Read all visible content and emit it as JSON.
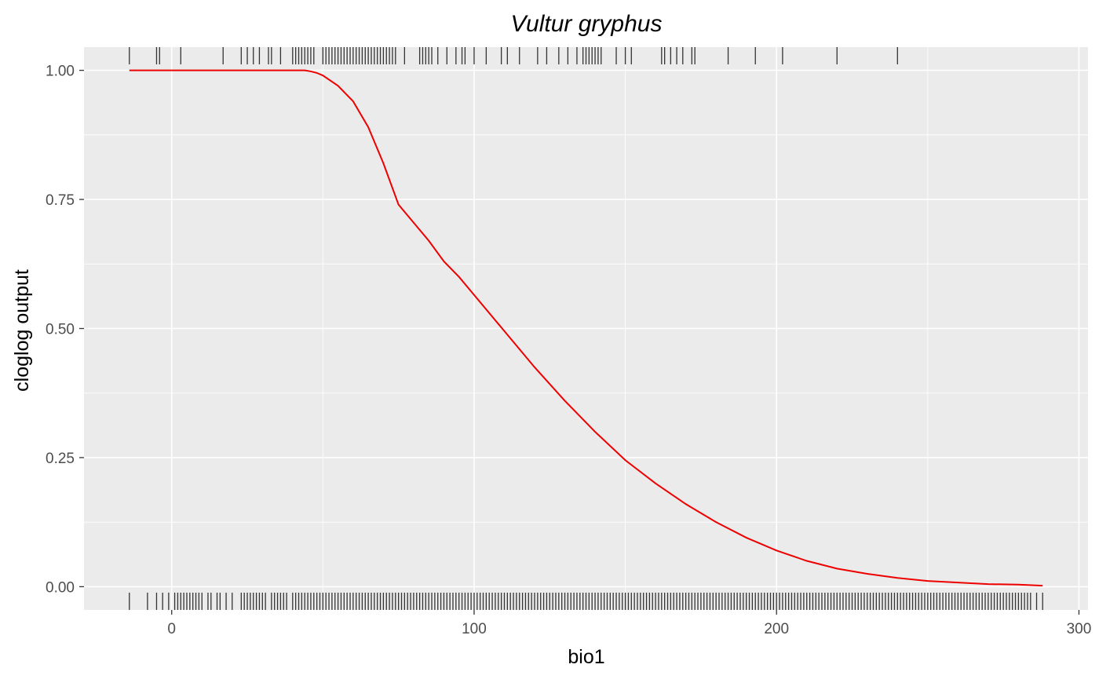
{
  "chart_data": {
    "type": "line",
    "title": "Vultur gryphus",
    "xlabel": "bio1",
    "ylabel": "cloglog output",
    "xlim": [
      -29,
      303
    ],
    "ylim": [
      -0.045,
      1.045
    ],
    "x_ticks": [
      0,
      100,
      200,
      300
    ],
    "x_tick_labels": [
      "0",
      "100",
      "200",
      "300"
    ],
    "x_minor_ticks": [
      -50,
      50,
      150,
      250
    ],
    "y_ticks": [
      0,
      0.25,
      0.5,
      0.75,
      1.0
    ],
    "y_tick_labels": [
      "0.00",
      "0.25",
      "0.50",
      "0.75",
      "1.00"
    ],
    "y_minor_ticks": [
      0.125,
      0.375,
      0.625,
      0.875
    ],
    "grid": true,
    "legend": "none",
    "colors": {
      "line": "#ee0000",
      "panel": "#ebebeb",
      "grid": "#ffffff",
      "rug": "#333333"
    },
    "series": [
      {
        "x": [
          -14,
          0,
          20,
          40,
          44,
          46,
          48,
          50,
          55,
          60,
          65,
          70,
          75,
          80,
          85,
          90,
          95,
          100,
          110,
          120,
          130,
          140,
          150,
          160,
          170,
          180,
          190,
          200,
          210,
          220,
          230,
          240,
          250,
          260,
          270,
          280,
          288
        ],
        "y": [
          1.0,
          1.0,
          1.0,
          1.0,
          1.0,
          0.998,
          0.995,
          0.99,
          0.97,
          0.94,
          0.89,
          0.82,
          0.74,
          0.705,
          0.67,
          0.63,
          0.6,
          0.565,
          0.495,
          0.425,
          0.36,
          0.3,
          0.245,
          0.2,
          0.16,
          0.125,
          0.095,
          0.07,
          0.05,
          0.035,
          0.025,
          0.017,
          0.011,
          0.008,
          0.005,
          0.004,
          0.002
        ]
      }
    ],
    "rug_presence_x": [
      -14,
      -5,
      -4,
      3,
      17,
      23,
      25,
      27,
      29,
      32,
      33,
      36,
      40,
      41,
      42,
      43,
      44,
      45,
      46,
      47,
      50,
      51,
      52,
      53,
      54,
      55,
      56,
      57,
      58,
      59,
      60,
      61,
      62,
      63,
      64,
      65,
      66,
      67,
      68,
      69,
      70,
      71,
      72,
      73,
      74,
      77,
      82,
      83,
      84,
      85,
      86,
      88,
      91,
      94,
      96,
      97,
      100,
      104,
      109,
      111,
      115,
      121,
      124,
      128,
      131,
      134,
      136,
      137,
      138,
      139,
      140,
      141,
      142,
      147,
      150,
      152,
      162,
      163,
      165,
      167,
      169,
      172,
      173,
      184,
      193,
      202,
      220,
      240
    ],
    "rug_absence_x": [
      -14,
      -8,
      -5,
      -3,
      -1,
      1,
      2,
      3,
      4,
      5,
      6,
      7,
      8,
      9,
      10,
      12,
      13,
      15,
      16,
      18,
      20,
      23,
      24,
      25,
      26,
      27,
      28,
      29,
      30,
      31,
      33,
      34,
      35,
      36,
      37,
      38,
      40,
      41,
      42,
      43,
      44,
      45,
      46,
      47,
      48,
      49,
      50,
      51,
      52,
      53,
      54,
      55,
      56,
      57,
      58,
      59,
      60,
      61,
      62,
      63,
      64,
      65,
      66,
      67,
      68,
      69,
      70,
      71,
      72,
      73,
      74,
      75,
      76,
      77,
      78,
      79,
      80,
      81,
      82,
      83,
      84,
      85,
      86,
      87,
      88,
      89,
      90,
      91,
      92,
      93,
      94,
      95,
      96,
      97,
      98,
      99,
      100,
      101,
      102,
      103,
      104,
      105,
      106,
      107,
      108,
      109,
      110,
      111,
      112,
      113,
      114,
      115,
      116,
      117,
      118,
      119,
      120,
      121,
      122,
      123,
      124,
      125,
      126,
      127,
      128,
      129,
      130,
      131,
      132,
      133,
      134,
      135,
      136,
      137,
      138,
      139,
      140,
      141,
      142,
      143,
      144,
      145,
      146,
      147,
      148,
      149,
      150,
      151,
      152,
      153,
      154,
      155,
      156,
      157,
      158,
      159,
      160,
      161,
      162,
      163,
      164,
      165,
      166,
      167,
      168,
      169,
      170,
      171,
      172,
      173,
      174,
      175,
      176,
      177,
      178,
      179,
      180,
      181,
      182,
      183,
      184,
      185,
      186,
      187,
      188,
      189,
      190,
      191,
      192,
      193,
      194,
      195,
      196,
      197,
      198,
      199,
      200,
      201,
      202,
      203,
      204,
      205,
      206,
      207,
      208,
      209,
      210,
      211,
      212,
      213,
      214,
      215,
      216,
      217,
      218,
      219,
      220,
      221,
      222,
      223,
      224,
      225,
      226,
      227,
      228,
      229,
      230,
      231,
      232,
      233,
      234,
      235,
      236,
      237,
      238,
      239,
      240,
      241,
      242,
      243,
      244,
      245,
      246,
      247,
      248,
      249,
      250,
      251,
      252,
      253,
      254,
      255,
      256,
      257,
      258,
      259,
      260,
      261,
      262,
      263,
      264,
      265,
      266,
      267,
      268,
      269,
      270,
      271,
      272,
      273,
      274,
      275,
      276,
      277,
      278,
      279,
      280,
      281,
      282,
      283,
      284,
      286,
      288
    ]
  }
}
